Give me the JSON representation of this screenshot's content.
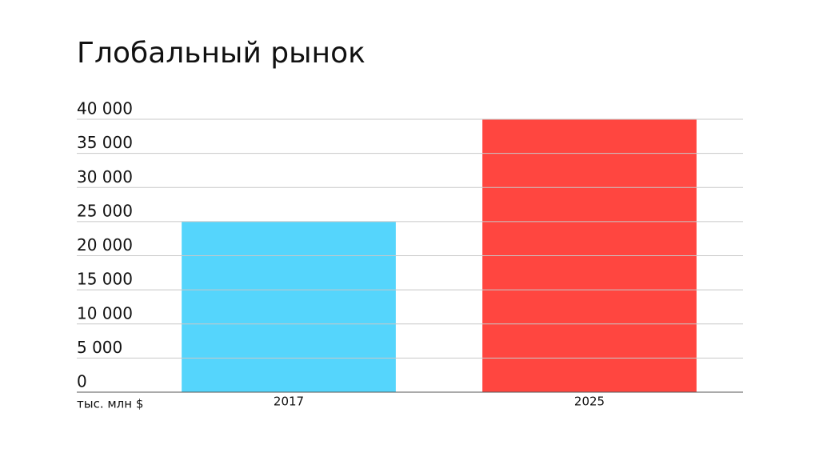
{
  "chart_data": {
    "type": "bar",
    "title": "Глобальный рынок",
    "ylabel": "тыс. млн $",
    "categories": [
      "2017",
      "2025"
    ],
    "values": [
      25000,
      40000
    ],
    "colors": [
      "#55d5fc",
      "#ff4640"
    ],
    "ylim": [
      0,
      40000
    ],
    "yticks": [
      0,
      {
        "value": 5000,
        "label": "5 000"
      },
      {
        "value": 10000,
        "label": "10 000"
      },
      {
        "value": 15000,
        "label": "15 000"
      },
      {
        "value": 20000,
        "label": "20 000"
      },
      {
        "value": 25000,
        "label": "25 000"
      },
      {
        "value": 30000,
        "label": "30 000"
      },
      {
        "value": 35000,
        "label": "35 000"
      },
      {
        "value": 40000,
        "label": "40 000"
      }
    ],
    "grid": true
  }
}
